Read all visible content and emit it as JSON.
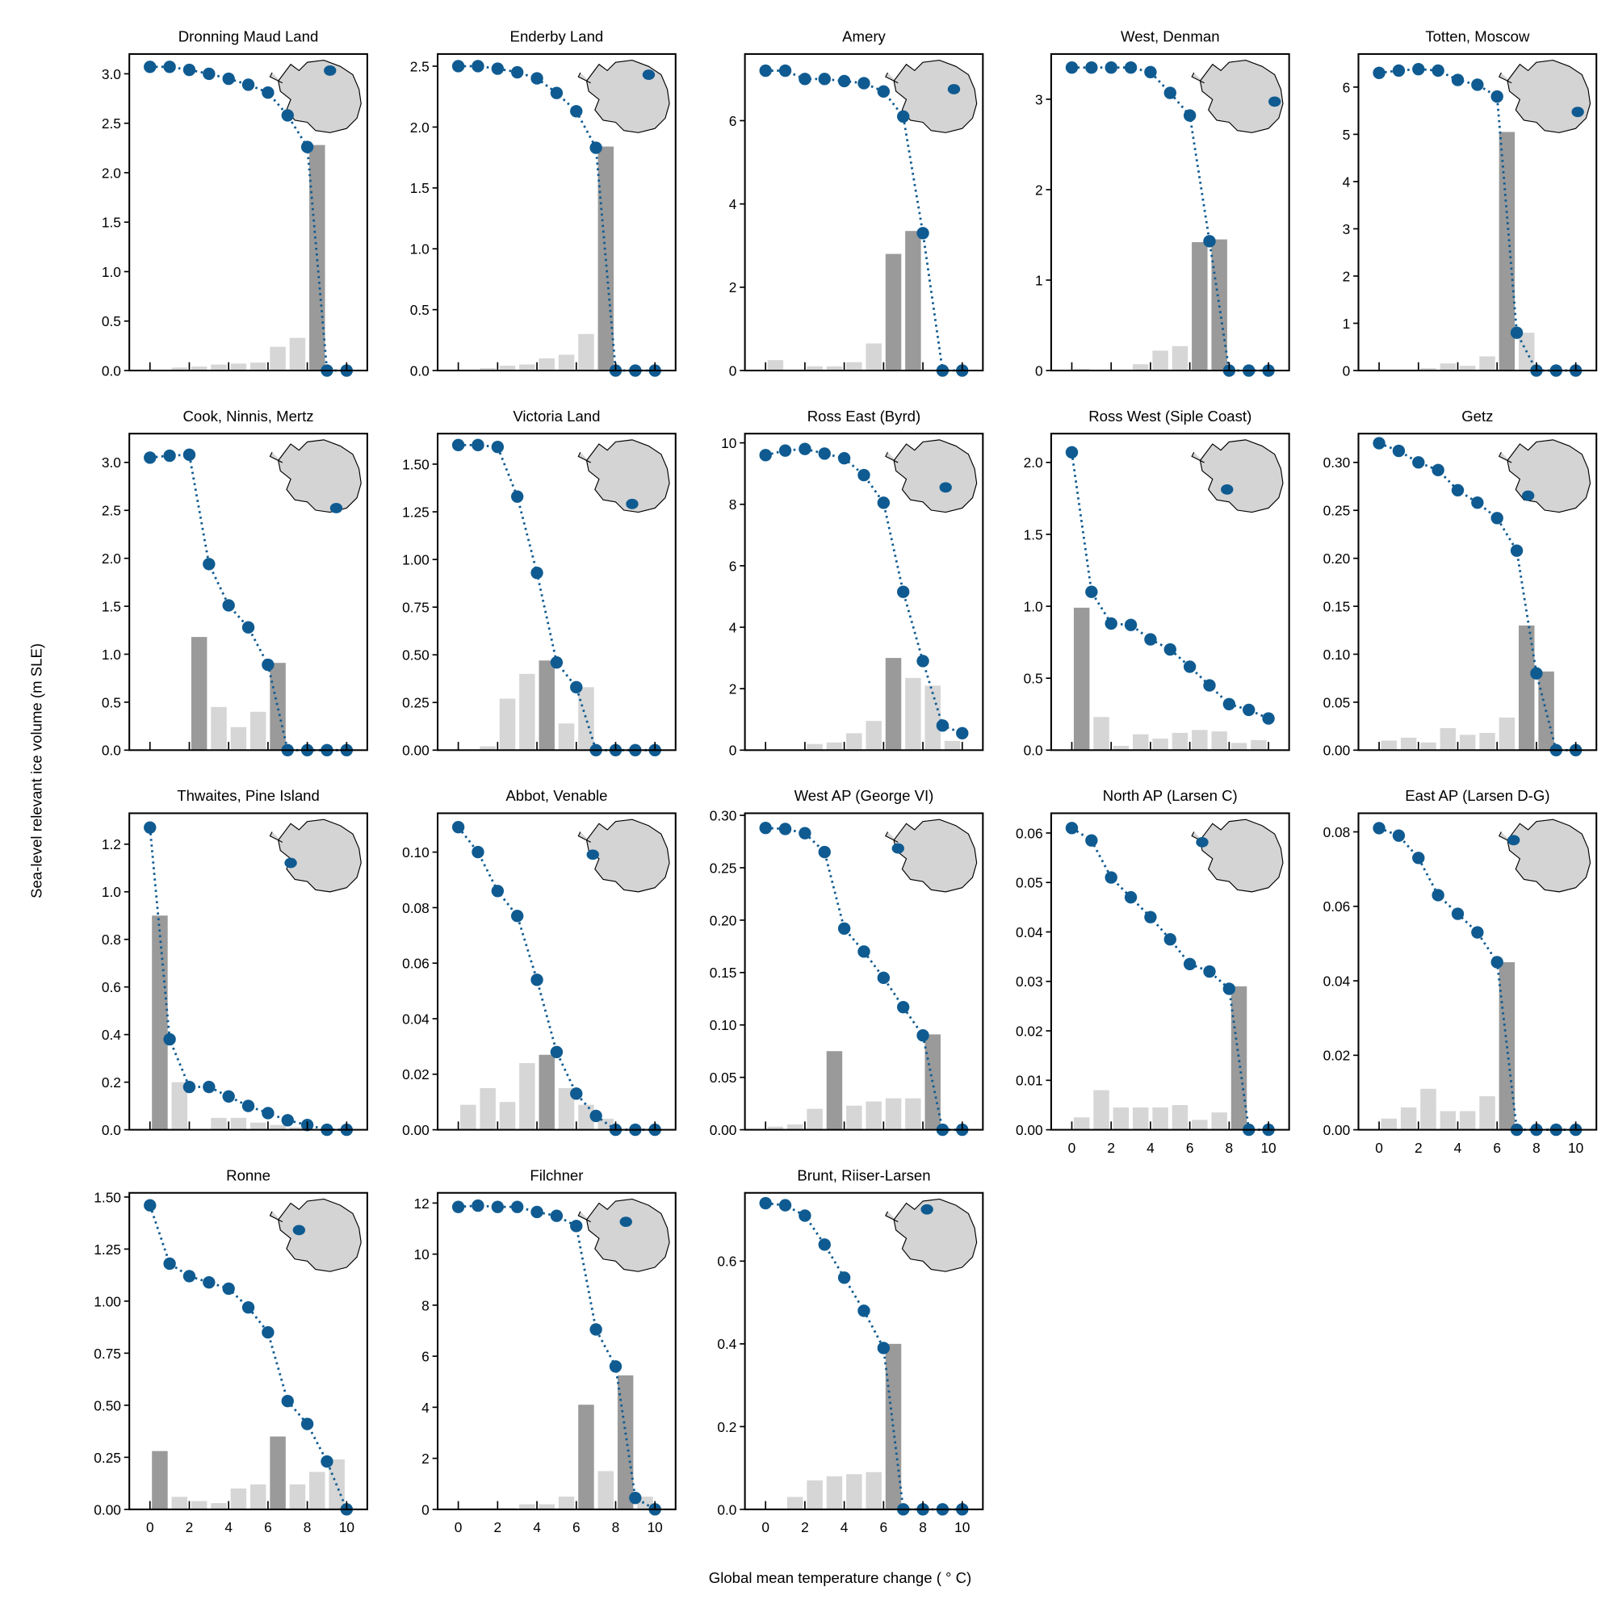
{
  "chart_data": {
    "type": "bar+line",
    "xlabel": "Global mean temperature change ( ° C)",
    "ylabel": "Sea-level relevant ice volume (m SLE)",
    "xlim": [
      -1.05,
      11.05
    ],
    "xticks": [
      0,
      2,
      4,
      6,
      8,
      10
    ],
    "x_points": [
      0,
      1,
      2,
      3,
      4,
      5,
      6,
      7,
      8,
      9,
      10
    ],
    "bar_x": [
      0.5,
      1.5,
      2.5,
      3.5,
      4.5,
      5.5,
      6.5,
      7.5,
      8.5,
      9.5
    ],
    "colors": {
      "line": "#0f5b91",
      "bar_dark": "#9a9a9a",
      "bar_light": "#d6d6d6",
      "map": "#d4d4d4"
    },
    "panels": [
      {
        "title": "Dronning Maud Land",
        "ylim": [
          0,
          3.2
        ],
        "yticks": [
          "0.0",
          "0.5",
          "1.0",
          "1.5",
          "2.0",
          "2.5",
          "3.0"
        ],
        "ytick_vals": [
          0,
          0.5,
          1,
          1.5,
          2,
          2.5,
          3
        ],
        "points": [
          3.07,
          3.07,
          3.04,
          3.0,
          2.95,
          2.89,
          2.81,
          2.58,
          2.26,
          0,
          0
        ],
        "bars": [
          0,
          0.03,
          0.04,
          0.06,
          0.07,
          0.08,
          0.24,
          0.33,
          2.28,
          0
        ],
        "dark": [
          8
        ]
      },
      {
        "title": "Enderby Land",
        "ylim": [
          0,
          2.6
        ],
        "yticks": [
          "0.0",
          "0.5",
          "1.0",
          "1.5",
          "2.0",
          "2.5"
        ],
        "ytick_vals": [
          0,
          0.5,
          1,
          1.5,
          2,
          2.5
        ],
        "points": [
          2.5,
          2.5,
          2.48,
          2.45,
          2.4,
          2.28,
          2.13,
          1.83,
          0,
          0,
          0
        ],
        "bars": [
          0,
          0.02,
          0.04,
          0.05,
          0.1,
          0.13,
          0.3,
          1.84,
          0,
          0
        ],
        "dark": [
          7
        ]
      },
      {
        "title": "Amery",
        "ylim": [
          0,
          7.6
        ],
        "yticks": [
          "0",
          "2",
          "4",
          "6"
        ],
        "ytick_vals": [
          0,
          2,
          4,
          6
        ],
        "points": [
          7.2,
          7.2,
          7.0,
          7.0,
          6.95,
          6.9,
          6.7,
          6.1,
          3.3,
          0,
          0
        ],
        "bars": [
          0.25,
          0,
          0.1,
          0.1,
          0.2,
          0.65,
          2.8,
          3.35,
          0,
          0
        ],
        "dark": [
          6,
          7
        ]
      },
      {
        "title": "West, Denman",
        "ylim": [
          0,
          3.5
        ],
        "yticks": [
          "0",
          "1",
          "2",
          "3"
        ],
        "ytick_vals": [
          0,
          1,
          2,
          3
        ],
        "points": [
          3.35,
          3.35,
          3.35,
          3.35,
          3.3,
          3.07,
          2.82,
          1.43,
          0,
          0,
          0
        ],
        "bars": [
          0.02,
          0,
          0,
          0.07,
          0.22,
          0.27,
          1.42,
          1.45,
          0,
          0
        ],
        "dark": [
          6,
          7
        ]
      },
      {
        "title": "Totten, Moscow",
        "ylim": [
          0,
          6.7
        ],
        "yticks": [
          "0",
          "1",
          "2",
          "3",
          "4",
          "5",
          "6"
        ],
        "ytick_vals": [
          0,
          1,
          2,
          3,
          4,
          5,
          6
        ],
        "points": [
          6.3,
          6.35,
          6.38,
          6.35,
          6.15,
          6.05,
          5.8,
          0.8,
          0,
          0,
          0
        ],
        "bars": [
          0,
          0.02,
          0.05,
          0.15,
          0.1,
          0.3,
          5.05,
          0.8,
          0,
          0
        ],
        "dark": [
          6
        ]
      },
      {
        "title": "Cook, Ninnis, Mertz",
        "ylim": [
          0,
          3.3
        ],
        "yticks": [
          "0.0",
          "0.5",
          "1.0",
          "1.5",
          "2.0",
          "2.5",
          "3.0"
        ],
        "ytick_vals": [
          0,
          0.5,
          1,
          1.5,
          2,
          2.5,
          3
        ],
        "points": [
          3.05,
          3.07,
          3.08,
          1.94,
          1.51,
          1.28,
          0.89,
          0,
          0,
          0,
          0
        ],
        "bars": [
          0,
          0,
          1.18,
          0.45,
          0.24,
          0.4,
          0.91,
          0,
          0,
          0
        ],
        "dark": [
          2,
          6
        ]
      },
      {
        "title": "Victoria Land",
        "ylim": [
          0,
          1.66
        ],
        "yticks": [
          "0.00",
          "0.25",
          "0.50",
          "0.75",
          "1.00",
          "1.25",
          "1.50"
        ],
        "ytick_vals": [
          0,
          0.25,
          0.5,
          0.75,
          1,
          1.25,
          1.5
        ],
        "points": [
          1.6,
          1.6,
          1.59,
          1.33,
          0.93,
          0.46,
          0.33,
          0,
          0,
          0,
          0
        ],
        "bars": [
          0,
          0.02,
          0.27,
          0.4,
          0.47,
          0.14,
          0.33,
          0,
          0,
          0
        ],
        "dark": [
          4
        ]
      },
      {
        "title": "Ross East (Byrd)",
        "ylim": [
          0,
          10.3
        ],
        "yticks": [
          "0",
          "2",
          "4",
          "6",
          "8",
          "10"
        ],
        "ytick_vals": [
          0,
          2,
          4,
          6,
          8,
          10
        ],
        "points": [
          9.6,
          9.75,
          9.8,
          9.65,
          9.5,
          8.95,
          8.05,
          5.15,
          2.9,
          0.8,
          0.55
        ],
        "bars": [
          0,
          0,
          0.2,
          0.25,
          0.55,
          0.95,
          3.0,
          2.35,
          2.1,
          0.3
        ],
        "dark": [
          6
        ]
      },
      {
        "title": "Ross West (Siple Coast)",
        "ylim": [
          0,
          2.2
        ],
        "yticks": [
          "0.0",
          "0.5",
          "1.0",
          "1.5",
          "2.0"
        ],
        "ytick_vals": [
          0,
          0.5,
          1,
          1.5,
          2
        ],
        "points": [
          2.07,
          1.1,
          0.88,
          0.87,
          0.77,
          0.7,
          0.58,
          0.45,
          0.32,
          0.28,
          0.22
        ],
        "bars": [
          0.99,
          0.23,
          0.03,
          0.11,
          0.08,
          0.12,
          0.14,
          0.13,
          0.05,
          0.07
        ],
        "dark": [
          0
        ]
      },
      {
        "title": "Getz",
        "ylim": [
          0,
          0.33
        ],
        "yticks": [
          "0.00",
          "0.05",
          "0.10",
          "0.15",
          "0.20",
          "0.25",
          "0.30"
        ],
        "ytick_vals": [
          0,
          0.05,
          0.1,
          0.15,
          0.2,
          0.25,
          0.3
        ],
        "points": [
          0.32,
          0.312,
          0.3,
          0.292,
          0.271,
          0.258,
          0.242,
          0.208,
          0.08,
          0,
          0
        ],
        "bars": [
          0.01,
          0.013,
          0.008,
          0.023,
          0.016,
          0.018,
          0.034,
          0.13,
          0.082,
          0
        ],
        "dark": [
          7,
          8
        ]
      },
      {
        "title": "Thwaites, Pine Island",
        "ylim": [
          0,
          1.33
        ],
        "yticks": [
          "0.0",
          "0.2",
          "0.4",
          "0.6",
          "0.8",
          "1.0",
          "1.2"
        ],
        "ytick_vals": [
          0,
          0.2,
          0.4,
          0.6,
          0.8,
          1,
          1.2
        ],
        "points": [
          1.27,
          0.38,
          0.18,
          0.18,
          0.14,
          0.1,
          0.07,
          0.04,
          0.02,
          0,
          0
        ],
        "bars": [
          0.9,
          0.2,
          0,
          0.05,
          0.05,
          0.03,
          0.02,
          0.01,
          0,
          0
        ],
        "dark": [
          0
        ]
      },
      {
        "title": "Abbot, Venable",
        "ylim": [
          0,
          0.114
        ],
        "yticks": [
          "0.00",
          "0.02",
          "0.04",
          "0.06",
          "0.08",
          "0.10"
        ],
        "ytick_vals": [
          0,
          0.02,
          0.04,
          0.06,
          0.08,
          0.1
        ],
        "points": [
          0.109,
          0.1,
          0.086,
          0.077,
          0.054,
          0.028,
          0.013,
          0.005,
          0,
          0,
          0
        ],
        "bars": [
          0.009,
          0.015,
          0.01,
          0.024,
          0.027,
          0.015,
          0.009,
          0.004,
          0,
          0
        ],
        "dark": [
          4
        ]
      },
      {
        "title": "West AP (George VI)",
        "ylim": [
          0,
          0.302
        ],
        "yticks": [
          "0.00",
          "0.05",
          "0.10",
          "0.15",
          "0.20",
          "0.25",
          "0.30"
        ],
        "ytick_vals": [
          0,
          0.05,
          0.1,
          0.15,
          0.2,
          0.25,
          0.3
        ],
        "points": [
          0.288,
          0.287,
          0.283,
          0.265,
          0.192,
          0.17,
          0.145,
          0.117,
          0.09,
          0,
          0
        ],
        "bars": [
          0.003,
          0.005,
          0.02,
          0.075,
          0.023,
          0.027,
          0.03,
          0.03,
          0.091,
          0
        ],
        "dark": [
          3,
          8
        ]
      },
      {
        "title": "North AP (Larsen C)",
        "ylim": [
          0,
          0.064
        ],
        "yticks": [
          "0.00",
          "0.01",
          "0.02",
          "0.03",
          "0.04",
          "0.05",
          "0.06"
        ],
        "ytick_vals": [
          0,
          0.01,
          0.02,
          0.03,
          0.04,
          0.05,
          0.06
        ],
        "points": [
          0.061,
          0.0585,
          0.051,
          0.047,
          0.043,
          0.0385,
          0.0335,
          0.032,
          0.0285,
          0,
          0
        ],
        "bars": [
          0.0025,
          0.008,
          0.0045,
          0.0045,
          0.0045,
          0.005,
          0.002,
          0.0035,
          0.029,
          0
        ],
        "dark": [
          8
        ]
      },
      {
        "title": "East AP (Larsen D-G)",
        "ylim": [
          0,
          0.085
        ],
        "yticks": [
          "0.00",
          "0.02",
          "0.04",
          "0.06",
          "0.08"
        ],
        "ytick_vals": [
          0,
          0.02,
          0.04,
          0.06,
          0.08
        ],
        "points": [
          0.081,
          0.079,
          0.073,
          0.063,
          0.058,
          0.053,
          0.045,
          0,
          0,
          0,
          0
        ],
        "bars": [
          0.003,
          0.006,
          0.011,
          0.005,
          0.005,
          0.009,
          0.045,
          0,
          0,
          0
        ],
        "dark": [
          6
        ]
      },
      {
        "title": "Ronne",
        "ylim": [
          0,
          1.52
        ],
        "yticks": [
          "0.00",
          "0.25",
          "0.50",
          "0.75",
          "1.00",
          "1.25",
          "1.50"
        ],
        "ytick_vals": [
          0,
          0.25,
          0.5,
          0.75,
          1,
          1.25,
          1.5
        ],
        "points": [
          1.46,
          1.18,
          1.12,
          1.09,
          1.06,
          0.97,
          0.85,
          0.52,
          0.41,
          0.23,
          0
        ],
        "bars": [
          0.28,
          0.06,
          0.04,
          0.03,
          0.1,
          0.12,
          0.35,
          0.12,
          0.18,
          0.24
        ],
        "dark": [
          0,
          6
        ]
      },
      {
        "title": "Filchner",
        "ylim": [
          0,
          12.4
        ],
        "yticks": [
          "0",
          "2",
          "4",
          "6",
          "8",
          "10",
          "12"
        ],
        "ytick_vals": [
          0,
          2,
          4,
          6,
          8,
          10,
          12
        ],
        "points": [
          11.85,
          11.9,
          11.85,
          11.85,
          11.65,
          11.5,
          11.1,
          7.05,
          5.6,
          0.45,
          0
        ],
        "bars": [
          0,
          0.05,
          0.05,
          0.2,
          0.2,
          0.5,
          4.1,
          1.5,
          5.25,
          0.5
        ],
        "dark": [
          6,
          8
        ]
      },
      {
        "title": "Brunt, Riiser-Larsen",
        "ylim": [
          0,
          0.765
        ],
        "yticks": [
          "0.0",
          "0.2",
          "0.4",
          "0.6"
        ],
        "ytick_vals": [
          0,
          0.2,
          0.4,
          0.6
        ],
        "points": [
          0.74,
          0.735,
          0.71,
          0.64,
          0.56,
          0.48,
          0.39,
          0,
          0,
          0,
          0
        ],
        "bars": [
          0,
          0.03,
          0.07,
          0.08,
          0.085,
          0.09,
          0.4,
          0,
          0,
          0
        ],
        "dark": [
          6
        ]
      }
    ]
  }
}
